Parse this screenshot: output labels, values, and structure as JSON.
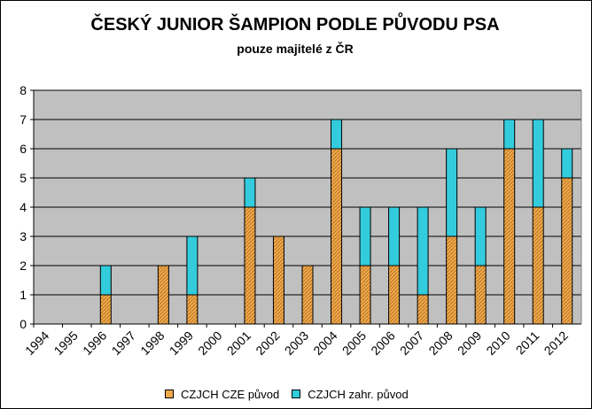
{
  "chart_data": {
    "type": "bar",
    "stacked": true,
    "title": "ČESKÝ JUNIOR ŠAMPION PODLE PŮVODU PSA",
    "subtitle": "pouze majitelé z ČR",
    "categories": [
      "1994",
      "1995",
      "1996",
      "1997",
      "1998",
      "1999",
      "2000",
      "2001",
      "2002",
      "2003",
      "2004",
      "2005",
      "2006",
      "2007",
      "2008",
      "2009",
      "2010",
      "2011",
      "2012"
    ],
    "series": [
      {
        "name": "CZJCH CZE původ",
        "color": "#f0a94a",
        "values": [
          0,
          0,
          1,
          0,
          2,
          1,
          0,
          4,
          3,
          2,
          6,
          2,
          2,
          1,
          3,
          2,
          6,
          4,
          5
        ]
      },
      {
        "name": "CZJCH zahr. původ",
        "color": "#33ccdd",
        "values": [
          0,
          0,
          1,
          0,
          0,
          2,
          0,
          1,
          0,
          0,
          1,
          2,
          2,
          3,
          3,
          2,
          1,
          3,
          1
        ]
      }
    ],
    "ylim": [
      0,
      8
    ],
    "yticks": [
      0,
      1,
      2,
      3,
      4,
      5,
      6,
      7,
      8
    ],
    "grid": true,
    "plot_background": "#c0c0c0",
    "legend_position": "bottom"
  }
}
